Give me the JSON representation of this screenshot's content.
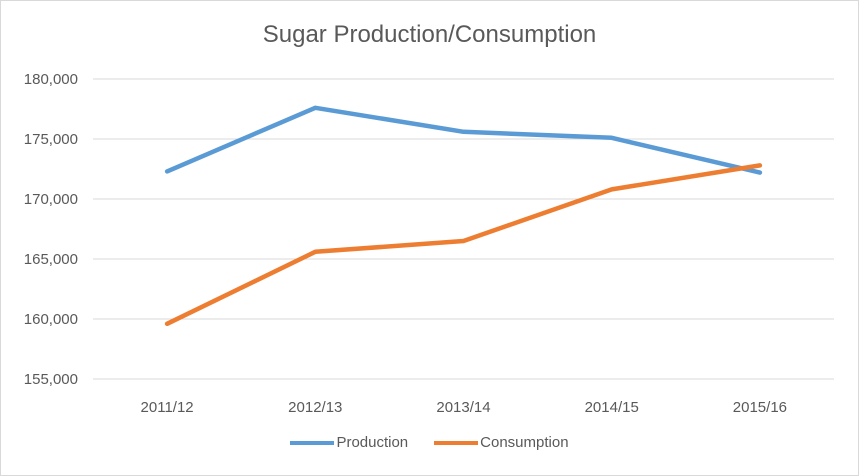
{
  "chart_data": {
    "type": "line",
    "title": "Sugar Production/Consumption",
    "xlabel": "",
    "ylabel": "",
    "categories": [
      "2011/12",
      "2012/13",
      "2013/14",
      "2014/15",
      "2015/16"
    ],
    "ylim": [
      155000,
      180000
    ],
    "yticks": [
      155000,
      160000,
      165000,
      170000,
      175000,
      180000
    ],
    "ytick_labels": [
      "155,000",
      "160,000",
      "165,000",
      "170,000",
      "175,000",
      "180,000"
    ],
    "grid": true,
    "legend_position": "bottom",
    "series": [
      {
        "name": "Production",
        "color": "#5b9bd5",
        "values": [
          172300,
          177600,
          175600,
          175100,
          172200
        ]
      },
      {
        "name": "Consumption",
        "color": "#ed7d31",
        "values": [
          159600,
          165600,
          166500,
          170800,
          172800
        ]
      }
    ]
  }
}
